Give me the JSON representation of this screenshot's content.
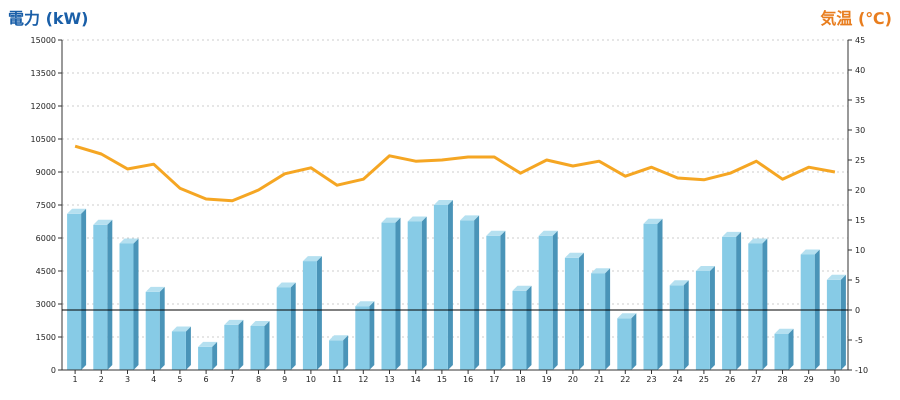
{
  "chart_data": {
    "type": "bar",
    "title": "",
    "ylabel_left": "電力 (kW)",
    "ylabel_right": "気温 (℃)",
    "categories": [
      "1",
      "2",
      "3",
      "4",
      "5",
      "6",
      "7",
      "8",
      "9",
      "10",
      "11",
      "12",
      "13",
      "14",
      "15",
      "16",
      "17",
      "18",
      "19",
      "20",
      "21",
      "22",
      "23",
      "24",
      "25",
      "26",
      "27",
      "28",
      "29",
      "30"
    ],
    "series": [
      {
        "axis": "left",
        "type": "bar",
        "color": "#87cbe6",
        "values": [
          7100,
          6600,
          5750,
          3550,
          1750,
          1050,
          2050,
          2000,
          3750,
          4950,
          1350,
          2900,
          6700,
          6750,
          7500,
          6800,
          6100,
          3600,
          6100,
          5100,
          4400,
          2350,
          6650,
          3850,
          4500,
          6050,
          5750,
          1650,
          5250,
          4100
        ]
      },
      {
        "axis": "right",
        "type": "line",
        "color": "#f5a623",
        "values": [
          27.3,
          26.0,
          23.5,
          24.3,
          20.3,
          18.5,
          18.2,
          20.0,
          22.7,
          23.7,
          20.8,
          21.8,
          25.7,
          24.8,
          25.0,
          25.5,
          25.5,
          22.8,
          25.0,
          24.0,
          24.8,
          22.3,
          23.8,
          22.0,
          21.7,
          22.8,
          24.8,
          21.8,
          23.8,
          23.0
        ]
      }
    ],
    "ylim_left": [
      0,
      15000
    ],
    "yticks_left": [
      "0",
      "1500",
      "3000",
      "4500",
      "6000",
      "7500",
      "9000",
      "10500",
      "12000",
      "13500",
      "15000"
    ],
    "ylim_right": [
      -10,
      45
    ],
    "yticks_right": [
      "-10",
      "-5",
      "0",
      "5",
      "10",
      "15",
      "20",
      "25",
      "30",
      "35",
      "40",
      "45"
    ],
    "reference_line_right": 0,
    "grid": true,
    "colors": {
      "left_title": "#1a5fa8",
      "right_title": "#e87d1e",
      "bar_face": "#87cbe6",
      "bar_side": "#4a94b8",
      "bar_top": "#b5e0f0",
      "line": "#f5a623",
      "grid": "#cccccc"
    }
  }
}
